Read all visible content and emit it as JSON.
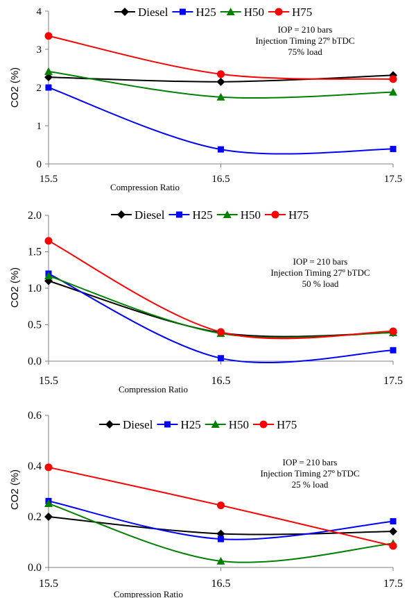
{
  "chart_data": [
    {
      "type": "line",
      "x": [
        15.5,
        16.5,
        17.5
      ],
      "xticks": [
        "15.5",
        "16.5",
        "17.5"
      ],
      "yticks": [
        "0",
        "1",
        "2",
        "3",
        "4"
      ],
      "ylim": [
        0,
        4
      ],
      "xlabel": "Compression Ratio",
      "ylabel": "CO2  (%)",
      "legend_position": "top",
      "annotation": [
        "IOP = 210 bars",
        "Injection Timing 27º bTDC",
        "75%  load"
      ],
      "series": [
        {
          "name": "Diesel",
          "color": "#000000",
          "marker": "diamond",
          "values": [
            2.27,
            2.15,
            2.32
          ]
        },
        {
          "name": "H25",
          "color": "#0000ff",
          "marker": "square",
          "values": [
            2.0,
            0.38,
            0.39
          ]
        },
        {
          "name": "H50",
          "color": "#008000",
          "marker": "triangle",
          "values": [
            2.42,
            1.75,
            1.88
          ]
        },
        {
          "name": "H75",
          "color": "#ff0000",
          "marker": "circle",
          "values": [
            3.35,
            2.35,
            2.22
          ]
        }
      ]
    },
    {
      "type": "line",
      "x": [
        15.5,
        16.5,
        17.5
      ],
      "xticks": [
        "15.5",
        "16.5",
        "17.5"
      ],
      "yticks": [
        "0.0",
        "0.5",
        "1.0",
        "1.5",
        "2.0"
      ],
      "ylim": [
        0,
        2
      ],
      "xlabel": "Compression Ratio",
      "ylabel": "CO2  (%)",
      "legend_position": "top",
      "annotation": [
        "IOP = 210 bars",
        "Injection Timing 27º bTDC",
        "50 %  load"
      ],
      "series": [
        {
          "name": "Diesel",
          "color": "#000000",
          "marker": "diamond",
          "values": [
            1.1,
            0.39,
            0.39
          ]
        },
        {
          "name": "H25",
          "color": "#0000ff",
          "marker": "square",
          "values": [
            1.2,
            0.04,
            0.15
          ]
        },
        {
          "name": "H50",
          "color": "#008000",
          "marker": "triangle",
          "values": [
            1.17,
            0.38,
            0.39
          ]
        },
        {
          "name": "H75",
          "color": "#ff0000",
          "marker": "circle",
          "values": [
            1.65,
            0.4,
            0.41
          ]
        }
      ]
    },
    {
      "type": "line",
      "x": [
        15.5,
        16.5,
        17.5
      ],
      "xticks": [
        "15.5",
        "16.5",
        "17.5"
      ],
      "yticks": [
        "0.0",
        "0.2",
        "0.4",
        "0.6"
      ],
      "ylim": [
        0,
        0.6
      ],
      "xlabel": "Compression Ratio",
      "ylabel": "CO2  (%)",
      "legend_position": "top",
      "annotation": [
        "IOP = 210 bars",
        "Injection Timing 27º bTDC",
        "25 %  load"
      ],
      "series": [
        {
          "name": "Diesel",
          "color": "#000000",
          "marker": "diamond",
          "values": [
            0.2,
            0.133,
            0.142
          ]
        },
        {
          "name": "H25",
          "color": "#0000ff",
          "marker": "square",
          "values": [
            0.262,
            0.112,
            0.182
          ]
        },
        {
          "name": "H50",
          "color": "#008000",
          "marker": "triangle",
          "values": [
            0.252,
            0.025,
            0.095
          ]
        },
        {
          "name": "H75",
          "color": "#ff0000",
          "marker": "circle",
          "values": [
            0.395,
            0.245,
            0.085
          ]
        }
      ]
    }
  ]
}
